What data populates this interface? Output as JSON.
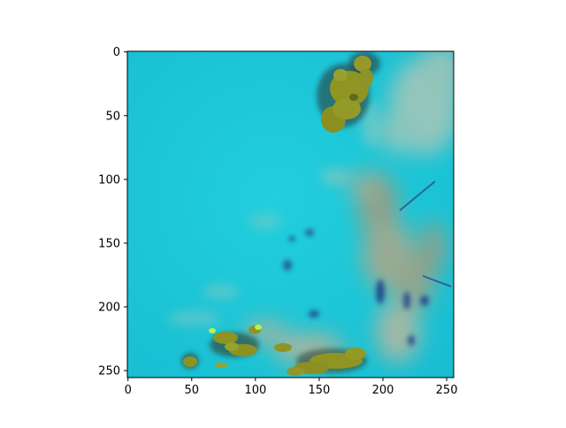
{
  "figure": {
    "description_type": "image",
    "colors": {
      "background": "#ffffff",
      "sea": "#1fc8d8",
      "sea_dark": "#18b2c8",
      "land_olive": "#8f9422",
      "land_dark": "#4c5a1c",
      "land_edge_green": "#b9f24a",
      "cloud_tan": "#b7b89b",
      "shadow_navy": "#1f3f86",
      "axis": "#000000"
    }
  },
  "chart_data": {
    "type": "heatmap",
    "title": "",
    "xlabel": "",
    "ylabel": "",
    "xlim": [
      0,
      255
    ],
    "ylim": [
      255,
      0
    ],
    "x_ticks": [
      "0",
      "50",
      "100",
      "150",
      "200",
      "250"
    ],
    "y_ticks": [
      "0",
      "50",
      "100",
      "150",
      "200",
      "250"
    ],
    "grid": false,
    "legend": "none"
  }
}
